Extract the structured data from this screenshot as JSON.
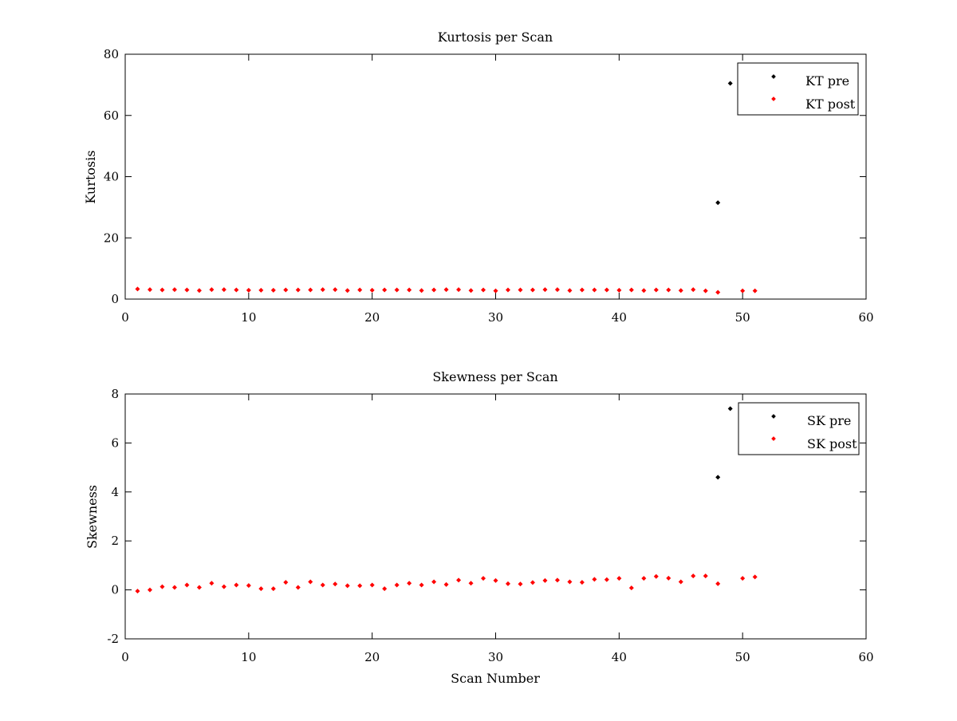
{
  "chart_data": [
    {
      "type": "scatter",
      "title": "Kurtosis per Scan",
      "xlabel": "",
      "ylabel": "Kurtosis",
      "xlim": [
        0,
        60
      ],
      "ylim": [
        0,
        80
      ],
      "xticks": [
        0,
        10,
        20,
        30,
        40,
        50,
        60
      ],
      "yticks": [
        0,
        20,
        40,
        60,
        80
      ],
      "grid": false,
      "legend_position": "top-right",
      "series": [
        {
          "name": "KT pre",
          "color": "#000000",
          "x": [
            48,
            49
          ],
          "y": [
            31.5,
            70.5
          ]
        },
        {
          "name": "KT post",
          "color": "#ff0000",
          "x": [
            1,
            2,
            3,
            4,
            5,
            6,
            7,
            8,
            9,
            10,
            11,
            12,
            13,
            14,
            15,
            16,
            17,
            18,
            19,
            20,
            21,
            22,
            23,
            24,
            25,
            26,
            27,
            28,
            29,
            30,
            31,
            32,
            33,
            34,
            35,
            36,
            37,
            38,
            39,
            40,
            41,
            42,
            43,
            44,
            45,
            46,
            47,
            48,
            50,
            51
          ],
          "y": [
            3.3,
            3.1,
            3.0,
            3.1,
            3.0,
            2.8,
            3.1,
            3.1,
            3.0,
            2.9,
            2.9,
            2.9,
            3.0,
            3.0,
            3.0,
            3.1,
            3.1,
            2.8,
            3.0,
            2.9,
            3.0,
            3.0,
            3.0,
            2.8,
            3.0,
            3.1,
            3.1,
            2.8,
            3.0,
            2.7,
            3.0,
            3.0,
            3.0,
            3.1,
            3.1,
            2.8,
            3.0,
            3.0,
            3.0,
            2.9,
            3.0,
            2.8,
            3.0,
            3.0,
            2.8,
            3.1,
            2.7,
            2.2,
            2.7,
            2.7
          ]
        }
      ]
    },
    {
      "type": "scatter",
      "title": "Skewness per Scan",
      "xlabel": "Scan Number",
      "ylabel": "Skewness",
      "xlim": [
        0,
        60
      ],
      "ylim": [
        -2,
        8
      ],
      "xticks": [
        0,
        10,
        20,
        30,
        40,
        50,
        60
      ],
      "yticks": [
        -2,
        0,
        2,
        4,
        6,
        8
      ],
      "grid": false,
      "legend_position": "top-right",
      "series": [
        {
          "name": "SK pre",
          "color": "#000000",
          "x": [
            48,
            49
          ],
          "y": [
            4.6,
            7.4
          ]
        },
        {
          "name": "SK post",
          "color": "#ff0000",
          "x": [
            1,
            2,
            3,
            4,
            5,
            6,
            7,
            8,
            9,
            10,
            11,
            12,
            13,
            14,
            15,
            16,
            17,
            18,
            19,
            20,
            21,
            22,
            23,
            24,
            25,
            26,
            27,
            28,
            29,
            30,
            31,
            32,
            33,
            34,
            35,
            36,
            37,
            38,
            39,
            40,
            41,
            42,
            43,
            44,
            45,
            46,
            47,
            48,
            50,
            51
          ],
          "y": [
            -0.05,
            0.0,
            0.13,
            0.1,
            0.2,
            0.1,
            0.27,
            0.13,
            0.2,
            0.18,
            0.05,
            0.05,
            0.31,
            0.1,
            0.33,
            0.2,
            0.24,
            0.17,
            0.17,
            0.2,
            0.05,
            0.2,
            0.27,
            0.2,
            0.33,
            0.22,
            0.4,
            0.27,
            0.47,
            0.38,
            0.25,
            0.24,
            0.3,
            0.38,
            0.4,
            0.33,
            0.31,
            0.43,
            0.42,
            0.47,
            0.08,
            0.47,
            0.55,
            0.48,
            0.33,
            0.57,
            0.57,
            0.25,
            0.47,
            0.53
          ]
        }
      ]
    }
  ]
}
